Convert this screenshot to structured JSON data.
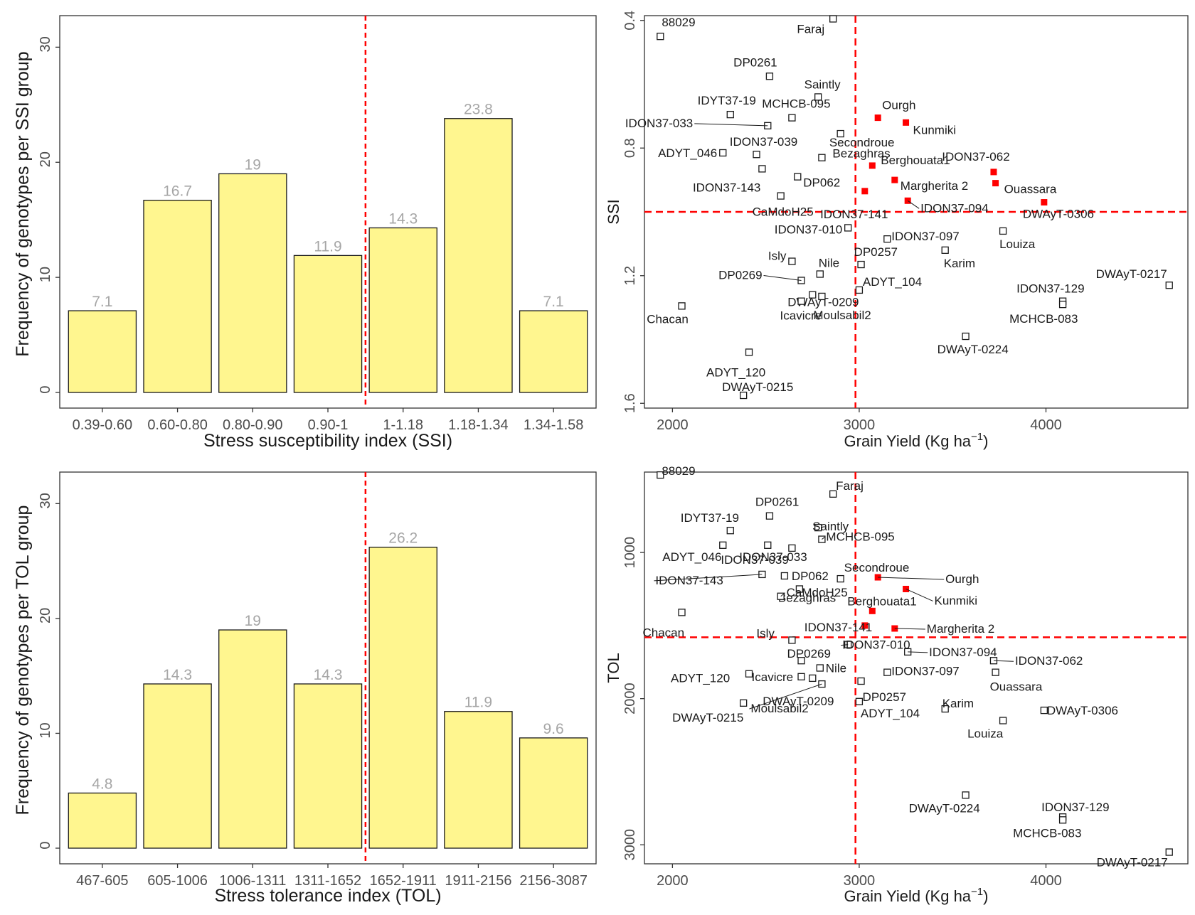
{
  "chart_data": [
    {
      "id": "ssi-hist",
      "type": "bar",
      "panel": "top-left",
      "title": "",
      "xlabel": "Stress susceptibility index (SSI)",
      "ylabel": "Frequency of genotypes per SSI group",
      "categories": [
        "0.39-0.60",
        "0.60-0.80",
        "0.80-0.90",
        "0.90-1",
        "1-1.18",
        "1.18-1.34",
        "1.34-1.58"
      ],
      "values": [
        7.1,
        16.7,
        19,
        11.9,
        14.3,
        23.8,
        7.1
      ],
      "value_labels": [
        "7.1",
        "16.7",
        "19",
        "11.9",
        "14.3",
        "23.8",
        "7.1"
      ],
      "ylim": [
        0,
        32
      ],
      "yticks": [
        "0",
        "10",
        "20",
        "30"
      ],
      "divider_after_category": 4,
      "bar_color": "#fff68f",
      "divider_color": "#ff0000"
    },
    {
      "id": "ssi-scatter",
      "type": "scatter",
      "panel": "top-right",
      "title": "",
      "xlabel": "Grain Yield (Kg ha",
      "xlabel_sup": "−1",
      "xlabel_end": ")",
      "ylabel": "SSI",
      "xlim": [
        1850,
        4760
      ],
      "ylim": [
        0.385,
        1.615
      ],
      "y_reversed": true,
      "xticks": [
        "2000",
        "3000",
        "4000"
      ],
      "yticks": [
        "0.4",
        "0.8",
        "1.2",
        "1.6"
      ],
      "hline": 1.0,
      "vline": 2980,
      "highlight_color": "#ff0000",
      "points": [
        {
          "label": "88029",
          "x": 1935,
          "y": 0.45,
          "red": false
        },
        {
          "label": "Faraj",
          "x": 2860,
          "y": 0.395,
          "red": false
        },
        {
          "label": "DP0261",
          "x": 2520,
          "y": 0.575,
          "red": false
        },
        {
          "label": "Saintly",
          "x": 2780,
          "y": 0.64,
          "red": false
        },
        {
          "label": "IDYT37-19",
          "x": 2310,
          "y": 0.695,
          "red": false
        },
        {
          "label": "MCHCB-095",
          "x": 2640,
          "y": 0.705,
          "red": false
        },
        {
          "label": "IDON37-033",
          "x": 2510,
          "y": 0.73,
          "red": false
        },
        {
          "label": "Ourgh",
          "x": 3100,
          "y": 0.705,
          "red": true
        },
        {
          "label": "Kunmiki",
          "x": 3250,
          "y": 0.72,
          "red": true
        },
        {
          "label": "Secondroue",
          "x": 2900,
          "y": 0.755,
          "red": false
        },
        {
          "label": "IDON37-039",
          "x": 2450,
          "y": 0.82,
          "red": false
        },
        {
          "label": "Bezaghras",
          "x": 2800,
          "y": 0.83,
          "red": false
        },
        {
          "label": "ADYT_046",
          "x": 2270,
          "y": 0.815,
          "red": false
        },
        {
          "label": "Berghouata1",
          "x": 3070,
          "y": 0.855,
          "red": true
        },
        {
          "label": "IDON37-062",
          "x": 3720,
          "y": 0.875,
          "red": true
        },
        {
          "label": "IDON37-143",
          "x": 2480,
          "y": 0.865,
          "red": false
        },
        {
          "label": "DP062",
          "x": 2670,
          "y": 0.89,
          "red": false
        },
        {
          "label": "Margherita 2",
          "x": 3190,
          "y": 0.9,
          "red": true
        },
        {
          "label": "Ouassara",
          "x": 3730,
          "y": 0.91,
          "red": true
        },
        {
          "label": "IDON37-141",
          "x": 3030,
          "y": 0.935,
          "red": true
        },
        {
          "label": "CaMdoH25",
          "x": 2580,
          "y": 0.95,
          "red": false
        },
        {
          "label": "IDON37-094",
          "x": 3260,
          "y": 0.965,
          "red": true
        },
        {
          "label": "DWAyT-0306",
          "x": 3990,
          "y": 0.97,
          "red": true
        },
        {
          "label": "IDON37-010",
          "x": 2940,
          "y": 1.05,
          "red": false
        },
        {
          "label": "IDON37-097",
          "x": 3150,
          "y": 1.085,
          "red": false
        },
        {
          "label": "Louiza",
          "x": 3770,
          "y": 1.06,
          "red": false
        },
        {
          "label": "DP0257",
          "x": 3010,
          "y": 1.165,
          "red": false
        },
        {
          "label": "Karim",
          "x": 3460,
          "y": 1.12,
          "red": false
        },
        {
          "label": "Isly",
          "x": 2640,
          "y": 1.155,
          "red": false
        },
        {
          "label": "Nile",
          "x": 2790,
          "y": 1.195,
          "red": false
        },
        {
          "label": "DP0269",
          "x": 2690,
          "y": 1.215,
          "red": false
        },
        {
          "label": "DWAyT-0209",
          "x": 2750,
          "y": 1.26,
          "red": false
        },
        {
          "label": "ADYT_104",
          "x": 3000,
          "y": 1.245,
          "red": false
        },
        {
          "label": "Moulsabil2",
          "x": 2800,
          "y": 1.265,
          "red": false
        },
        {
          "label": "Icavicre",
          "x": 2690,
          "y": 1.28,
          "red": false
        },
        {
          "label": "DWAyT-0217",
          "x": 4660,
          "y": 1.23,
          "red": false
        },
        {
          "label": "IDON37-129",
          "x": 4090,
          "y": 1.28,
          "red": false
        },
        {
          "label": "MCHCB-083",
          "x": 4090,
          "y": 1.29,
          "red": false
        },
        {
          "label": "Chacan",
          "x": 2050,
          "y": 1.295,
          "red": false
        },
        {
          "label": "DWAyT-0224",
          "x": 3570,
          "y": 1.39,
          "red": false
        },
        {
          "label": "ADYT_120",
          "x": 2410,
          "y": 1.44,
          "red": false
        },
        {
          "label": "DWAyT-0215",
          "x": 2380,
          "y": 1.575,
          "red": false
        }
      ]
    },
    {
      "id": "tol-hist",
      "type": "bar",
      "panel": "bottom-left",
      "title": "",
      "xlabel": "Stress tolerance index (TOL)",
      "ylabel": "Frequency of genotypes per TOL group",
      "categories": [
        "467-605",
        "605-1006",
        "1006-1311",
        "1311-1652",
        "1652-1911",
        "1911-2156",
        "2156-3087"
      ],
      "values": [
        4.8,
        14.3,
        19,
        14.3,
        26.2,
        11.9,
        9.6
      ],
      "value_labels": [
        "4.8",
        "14.3",
        "19",
        "14.3",
        "26.2",
        "11.9",
        "9.6"
      ],
      "ylim": [
        0,
        32
      ],
      "yticks": [
        "0",
        "10",
        "20",
        "30"
      ],
      "divider_after_category": 4,
      "bar_color": "#fff68f",
      "divider_color": "#ff0000"
    },
    {
      "id": "tol-scatter",
      "type": "scatter",
      "panel": "bottom-right",
      "title": "",
      "xlabel": "Grain Yield (Kg ha",
      "xlabel_sup": "−1",
      "xlabel_end": ")",
      "ylabel": "TOL",
      "xlim": [
        1850,
        4760
      ],
      "ylim": [
        450,
        3130
      ],
      "y_reversed": true,
      "xticks": [
        "2000",
        "3000",
        "4000"
      ],
      "yticks": [
        "1000",
        "2000",
        "3000"
      ],
      "hline": 1580,
      "vline": 2980,
      "highlight_color": "#ff0000",
      "points": [
        {
          "label": "88029",
          "x": 1935,
          "y": 470,
          "red": false
        },
        {
          "label": "Faraj",
          "x": 2860,
          "y": 600,
          "red": false
        },
        {
          "label": "DP0261",
          "x": 2520,
          "y": 750,
          "red": false
        },
        {
          "label": "Saintly",
          "x": 2780,
          "y": 830,
          "red": false
        },
        {
          "label": "IDYT37-19",
          "x": 2310,
          "y": 850,
          "red": false
        },
        {
          "label": "ADYT_046",
          "x": 2270,
          "y": 950,
          "red": false
        },
        {
          "label": "IDON37-033",
          "x": 2510,
          "y": 950,
          "red": false
        },
        {
          "label": "MCHCB-095",
          "x": 2800,
          "y": 910,
          "red": false
        },
        {
          "label": "IDON37-039",
          "x": 2640,
          "y": 970,
          "red": false
        },
        {
          "label": "IDON37-143",
          "x": 2480,
          "y": 1150,
          "red": false
        },
        {
          "label": "DP062",
          "x": 2600,
          "y": 1160,
          "red": false
        },
        {
          "label": "Secondroue",
          "x": 2900,
          "y": 1180,
          "red": false
        },
        {
          "label": "Ourgh",
          "x": 3100,
          "y": 1170,
          "red": true
        },
        {
          "label": "Kunmiki",
          "x": 3250,
          "y": 1250,
          "red": true
        },
        {
          "label": "Bezaghras",
          "x": 2680,
          "y": 1250,
          "red": false
        },
        {
          "label": "CaMdoH25",
          "x": 2580,
          "y": 1300,
          "red": false
        },
        {
          "label": "Berghouata1",
          "x": 3070,
          "y": 1400,
          "red": true
        },
        {
          "label": "Chacan",
          "x": 2050,
          "y": 1410,
          "red": false
        },
        {
          "label": "IDON37-141",
          "x": 3030,
          "y": 1500,
          "red": true
        },
        {
          "label": "Margherita 2",
          "x": 3190,
          "y": 1520,
          "red": true
        },
        {
          "label": "Isly",
          "x": 2640,
          "y": 1600,
          "red": false
        },
        {
          "label": "IDON37-010",
          "x": 2940,
          "y": 1630,
          "red": false
        },
        {
          "label": "DP0269",
          "x": 2690,
          "y": 1740,
          "red": false
        },
        {
          "label": "IDON37-094",
          "x": 3260,
          "y": 1680,
          "red": false
        },
        {
          "label": "IDON37-062",
          "x": 3720,
          "y": 1740,
          "red": false
        },
        {
          "label": "Nile",
          "x": 2790,
          "y": 1790,
          "red": false
        },
        {
          "label": "Icavicre",
          "x": 2690,
          "y": 1850,
          "red": false
        },
        {
          "label": "IDON37-097",
          "x": 3150,
          "y": 1820,
          "red": false
        },
        {
          "label": "Ouassara",
          "x": 3730,
          "y": 1820,
          "red": false
        },
        {
          "label": "ADYT_120",
          "x": 2410,
          "y": 1830,
          "red": false
        },
        {
          "label": "DWAyT-0209",
          "x": 2750,
          "y": 1860,
          "red": false
        },
        {
          "label": "DP0257",
          "x": 3010,
          "y": 1880,
          "red": false
        },
        {
          "label": "Moulsabil2",
          "x": 2800,
          "y": 1900,
          "red": false
        },
        {
          "label": "ADYT_104",
          "x": 3000,
          "y": 2020,
          "red": false
        },
        {
          "label": "Karim",
          "x": 3460,
          "y": 2070,
          "red": false
        },
        {
          "label": "DWAyT-0215",
          "x": 2380,
          "y": 2030,
          "red": false
        },
        {
          "label": "DWAyT-0306",
          "x": 3990,
          "y": 2080,
          "red": false
        },
        {
          "label": "Louiza",
          "x": 3770,
          "y": 2150,
          "red": false
        },
        {
          "label": "DWAyT-0224",
          "x": 3570,
          "y": 2660,
          "red": false
        },
        {
          "label": "IDON37-129",
          "x": 4090,
          "y": 2810,
          "red": false
        },
        {
          "label": "MCHCB-083",
          "x": 4090,
          "y": 2830,
          "red": false
        },
        {
          "label": "DWAyT-0217",
          "x": 4660,
          "y": 3050,
          "red": false
        }
      ]
    }
  ]
}
